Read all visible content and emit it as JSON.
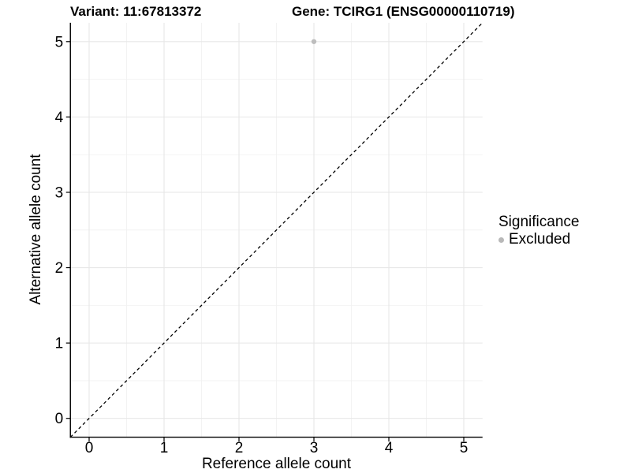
{
  "header": {
    "variant_title": "Variant: 11:67813372",
    "gene_title": "Gene: TCIRG1 (ENSG00000110719)"
  },
  "chart_data": {
    "type": "scatter",
    "xlabel": "Reference allele count",
    "ylabel": "Alternative allele count",
    "xlim": [
      -0.25,
      5.25
    ],
    "ylim": [
      -0.25,
      5.25
    ],
    "xticks": [
      0,
      1,
      2,
      3,
      4,
      5
    ],
    "yticks": [
      0,
      1,
      2,
      3,
      4,
      5
    ],
    "minor_breaks": [
      0.5,
      1.5,
      2.5,
      3.5,
      4.5
    ],
    "grid": "major and minor, light grey on white panel",
    "points": [
      {
        "x": 3,
        "y": 5,
        "series": "Excluded"
      }
    ],
    "reference_line": {
      "slope": 1,
      "intercept": 0,
      "style": "dashed",
      "color": "#000000"
    },
    "legend": {
      "title": "Significance",
      "position": "right",
      "entries": [
        {
          "label": "Excluded",
          "color": "#b8b8b8"
        }
      ]
    },
    "colors": {
      "point": "#bdbdbd",
      "grid_major": "#e7e7e7",
      "grid_minor": "#f2f2f2",
      "axis_line": "#000000",
      "text": "#000000"
    }
  }
}
